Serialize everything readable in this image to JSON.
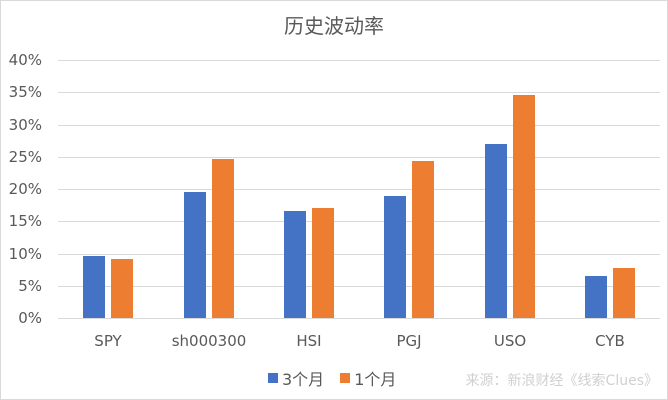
{
  "chart_data": {
    "type": "bar",
    "title": "历史波动率",
    "categories": [
      "SPY",
      "sh000300",
      "HSI",
      "PGJ",
      "USO",
      "CYB"
    ],
    "series": [
      {
        "name": "3个月",
        "color": "#4472C4",
        "values": [
          9.6,
          19.5,
          16.6,
          18.9,
          27.0,
          6.5
        ]
      },
      {
        "name": "1个月",
        "color": "#ED7D31",
        "values": [
          9.1,
          24.6,
          17.1,
          24.3,
          34.6,
          7.7
        ]
      }
    ],
    "xlabel": "",
    "ylabel": "",
    "ylim": [
      0,
      40
    ],
    "yticks": [
      "0%",
      "5%",
      "10%",
      "15%",
      "20%",
      "25%",
      "30%",
      "35%",
      "40%"
    ],
    "grid": true,
    "legend_position": "bottom",
    "unit": "%"
  },
  "source_note": "来源：新浪财经《线索Clues》"
}
